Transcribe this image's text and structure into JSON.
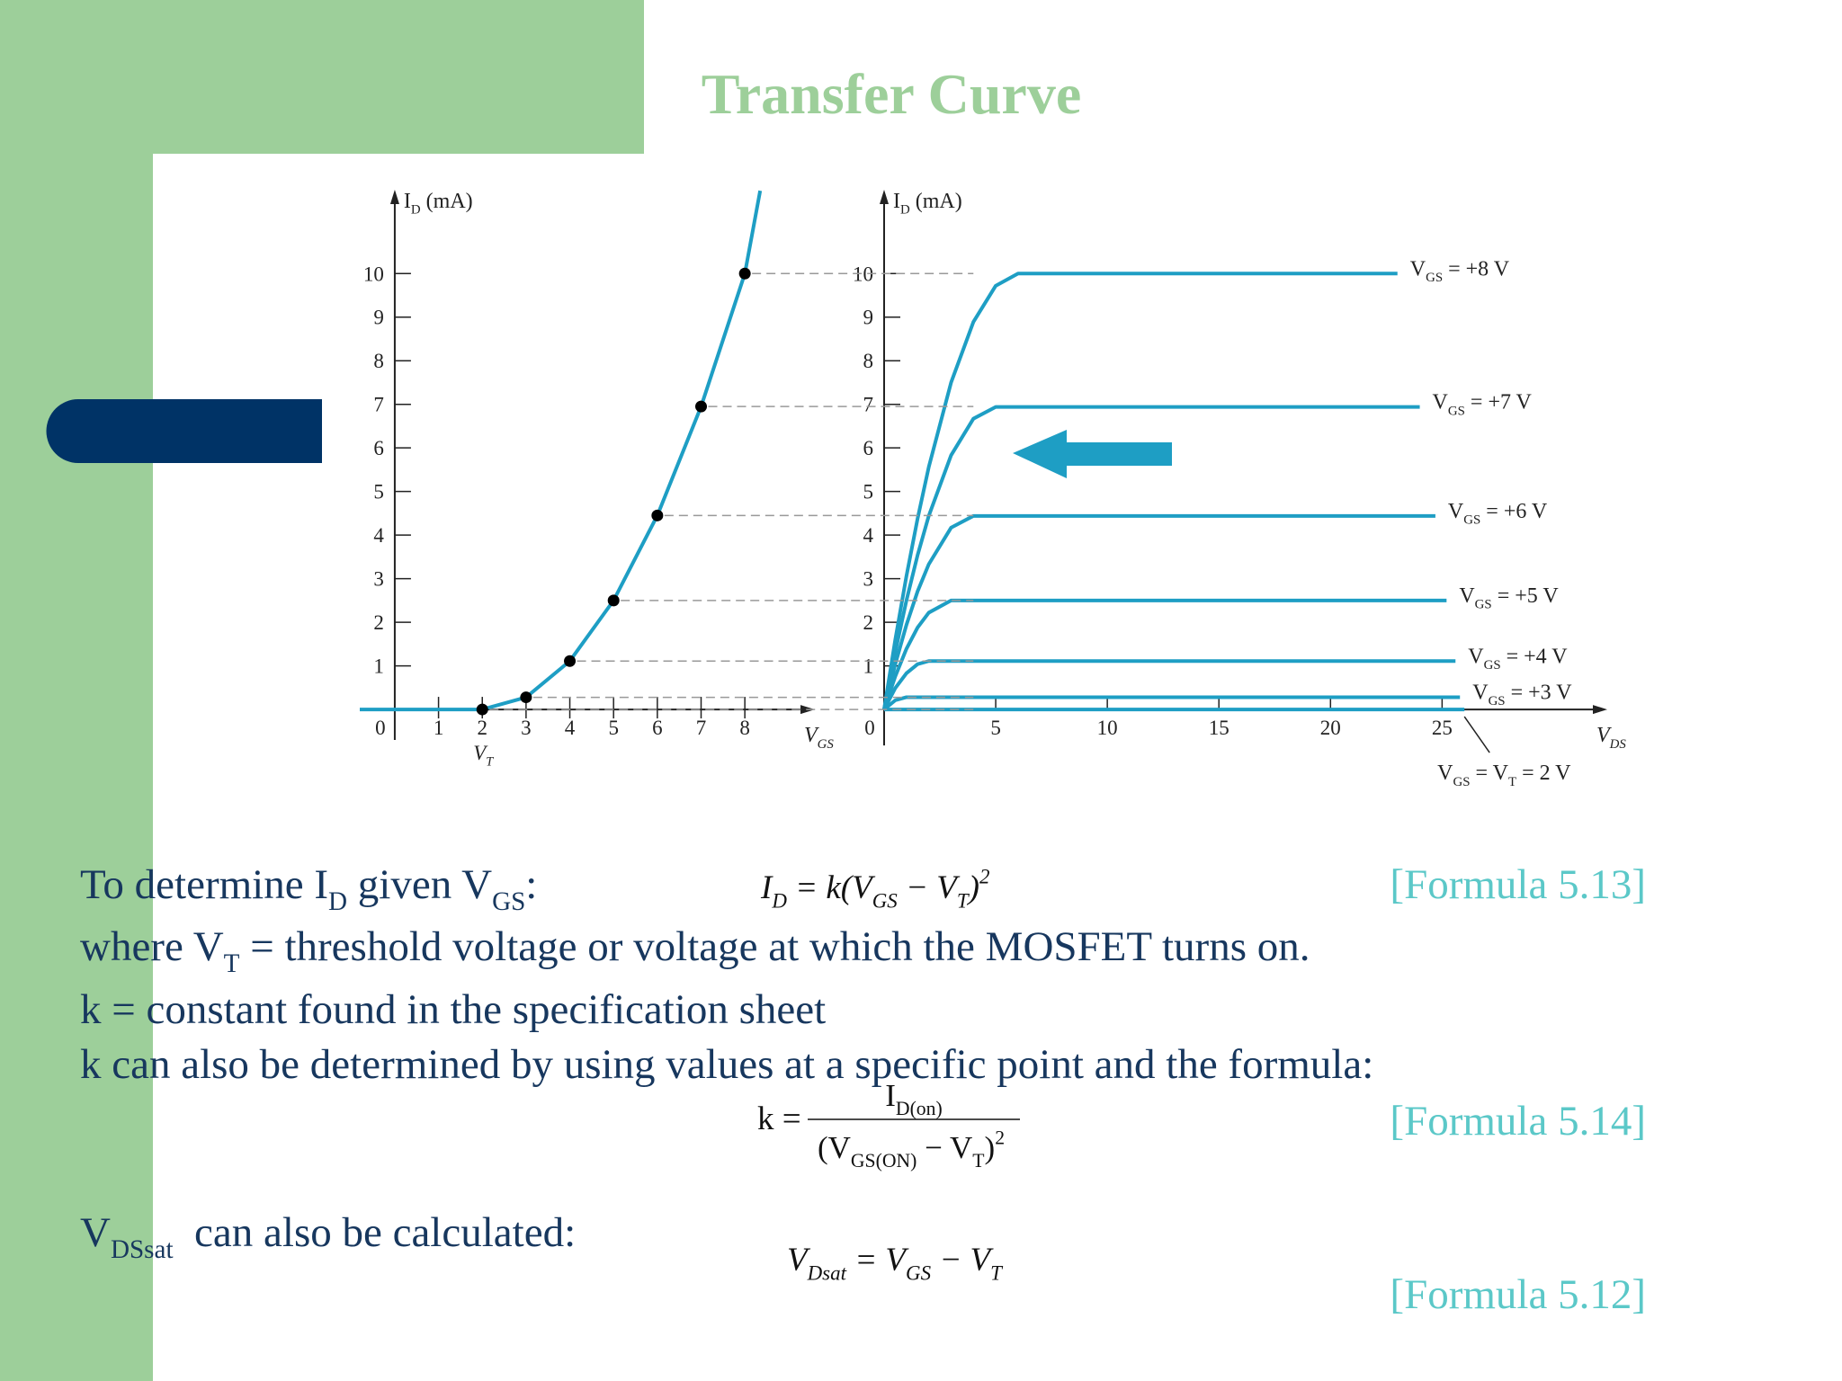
{
  "title": "Transfer Curve",
  "chart_data": [
    {
      "type": "line",
      "y_label": [
        "I",
        {
          "sub": "D"
        },
        " (mA)"
      ],
      "x_label": [
        "V",
        {
          "sub": "GS"
        }
      ],
      "x_annotation": {
        "x": 2,
        "label": [
          "V",
          {
            "sub": "T"
          }
        ]
      },
      "xlim": [
        -0.8,
        9.6
      ],
      "ylim": [
        -0.7,
        11.8
      ],
      "xticks": [
        0,
        1,
        2,
        3,
        4,
        5,
        6,
        7,
        8
      ],
      "yticks": [
        1,
        2,
        3,
        4,
        5,
        6,
        7,
        8,
        9,
        10
      ],
      "series": [
        {
          "color": "#1e9ec4",
          "marker": false,
          "x": [
            -0.8,
            1,
            2,
            3,
            4,
            5,
            6,
            7,
            8,
            8.35
          ],
          "values": [
            0,
            0,
            0,
            0.278,
            1.11,
            2.5,
            4.45,
            6.95,
            10,
            11.9
          ]
        },
        {
          "color": "#000000",
          "marker": true,
          "x": [
            2,
            3,
            4,
            5,
            6,
            7,
            8
          ],
          "values": [
            0,
            0.278,
            1.11,
            2.5,
            4.45,
            6.95,
            10
          ]
        }
      ]
    },
    {
      "type": "line",
      "y_label": [
        "I",
        {
          "sub": "D"
        },
        " (mA)"
      ],
      "x_label": [
        "V",
        {
          "sub": "DS"
        }
      ],
      "xlim": [
        0,
        32.4
      ],
      "ylim": [
        -0.7,
        11.8
      ],
      "xticks": [
        0,
        5,
        10,
        15,
        20,
        25
      ],
      "yticks": [
        1,
        2,
        3,
        4,
        5,
        6,
        7,
        8,
        9,
        10
      ],
      "series": [
        {
          "name": [
            "V",
            {
              "sub": "GS"
            },
            " = +8 V"
          ],
          "color": "#1e9ec4",
          "x": [
            0,
            0.5,
            1,
            1.5,
            2,
            3,
            4,
            5,
            6,
            23
          ],
          "values": [
            0,
            1.6,
            3.06,
            4.38,
            5.56,
            7.5,
            8.89,
            9.72,
            10,
            10
          ]
        },
        {
          "name": [
            "V",
            {
              "sub": "GS"
            },
            " = +7 V"
          ],
          "color": "#1e9ec4",
          "x": [
            0,
            0.5,
            1,
            1.5,
            2,
            3,
            4,
            5,
            6,
            24
          ],
          "values": [
            0,
            1.32,
            2.5,
            3.54,
            4.44,
            5.83,
            6.67,
            6.94,
            6.94,
            6.94
          ]
        },
        {
          "name": [
            "V",
            {
              "sub": "GS"
            },
            " = +6 V"
          ],
          "color": "#1e9ec4",
          "x": [
            0,
            0.5,
            1,
            1.5,
            2,
            3,
            4,
            5,
            6,
            24.7
          ],
          "values": [
            0,
            1.04,
            1.94,
            2.71,
            3.33,
            4.17,
            4.44,
            4.44,
            4.44,
            4.44
          ]
        },
        {
          "name": [
            "V",
            {
              "sub": "GS"
            },
            " = +5 V"
          ],
          "color": "#1e9ec4",
          "x": [
            0,
            0.5,
            1,
            1.5,
            2,
            3,
            4,
            5,
            6,
            25.2
          ],
          "values": [
            0,
            0.76,
            1.39,
            1.88,
            2.22,
            2.5,
            2.5,
            2.5,
            2.5,
            2.5
          ]
        },
        {
          "name": [
            "V",
            {
              "sub": "GS"
            },
            " = +4 V"
          ],
          "color": "#1e9ec4",
          "x": [
            0,
            0.5,
            1,
            1.5,
            2,
            3,
            4,
            5,
            6,
            25.6
          ],
          "values": [
            0,
            0.49,
            0.83,
            1.04,
            1.11,
            1.11,
            1.11,
            1.11,
            1.11,
            1.11
          ]
        },
        {
          "name": [
            "V",
            {
              "sub": "GS"
            },
            " = +3 V"
          ],
          "color": "#1e9ec4",
          "x": [
            0,
            0.5,
            1,
            1.5,
            2,
            3,
            4,
            5,
            6,
            25.8
          ],
          "values": [
            0,
            0.21,
            0.28,
            0.28,
            0.28,
            0.28,
            0.28,
            0.28,
            0.28,
            0.28
          ]
        },
        {
          "name": [
            "V",
            {
              "sub": "GS"
            },
            " = V",
            {
              "sub": "T"
            },
            " = 2 V"
          ],
          "label_position": "below",
          "color": "#1e9ec4",
          "x": [
            0,
            26
          ],
          "values": [
            0,
            0
          ]
        }
      ]
    }
  ],
  "body": {
    "lines": [
      [
        "To determine I",
        {
          "sub": "D"
        },
        " given V",
        {
          "sub": "GS"
        },
        ":"
      ],
      [
        "where V",
        {
          "sub": "T"
        },
        " = threshold voltage or voltage at which the MOSFET turns on."
      ],
      [
        "k = constant found in the specification sheet"
      ],
      [
        "k can also be determined by using values at a specific point and the formula:"
      ],
      [
        "V",
        {
          "sub": "DSsat"
        },
        "  can also be calculated:"
      ]
    ],
    "formula_1": [
      "I",
      {
        "sub": "D"
      },
      " = k(V",
      {
        "sub": "GS"
      },
      " − V",
      {
        "sub": "T"
      },
      ")",
      {
        "sup": "2"
      }
    ],
    "fraction": {
      "lhs": "k =",
      "numerator": [
        "I",
        {
          "sub": "D(on)"
        }
      ],
      "denominator": [
        "(V",
        {
          "sub": "GS(ON)"
        },
        " − V",
        {
          "sub": "T"
        },
        ")",
        {
          "sup": "2"
        }
      ]
    },
    "formula_3": [
      "V",
      {
        "sub": "Dsat"
      },
      " = V",
      {
        "sub": "GS"
      },
      " − V",
      {
        "sub": "T"
      }
    ],
    "formula_refs": [
      "[Formula 5.13]",
      "[Formula 5.14]",
      "[Formula 5.12]"
    ]
  }
}
